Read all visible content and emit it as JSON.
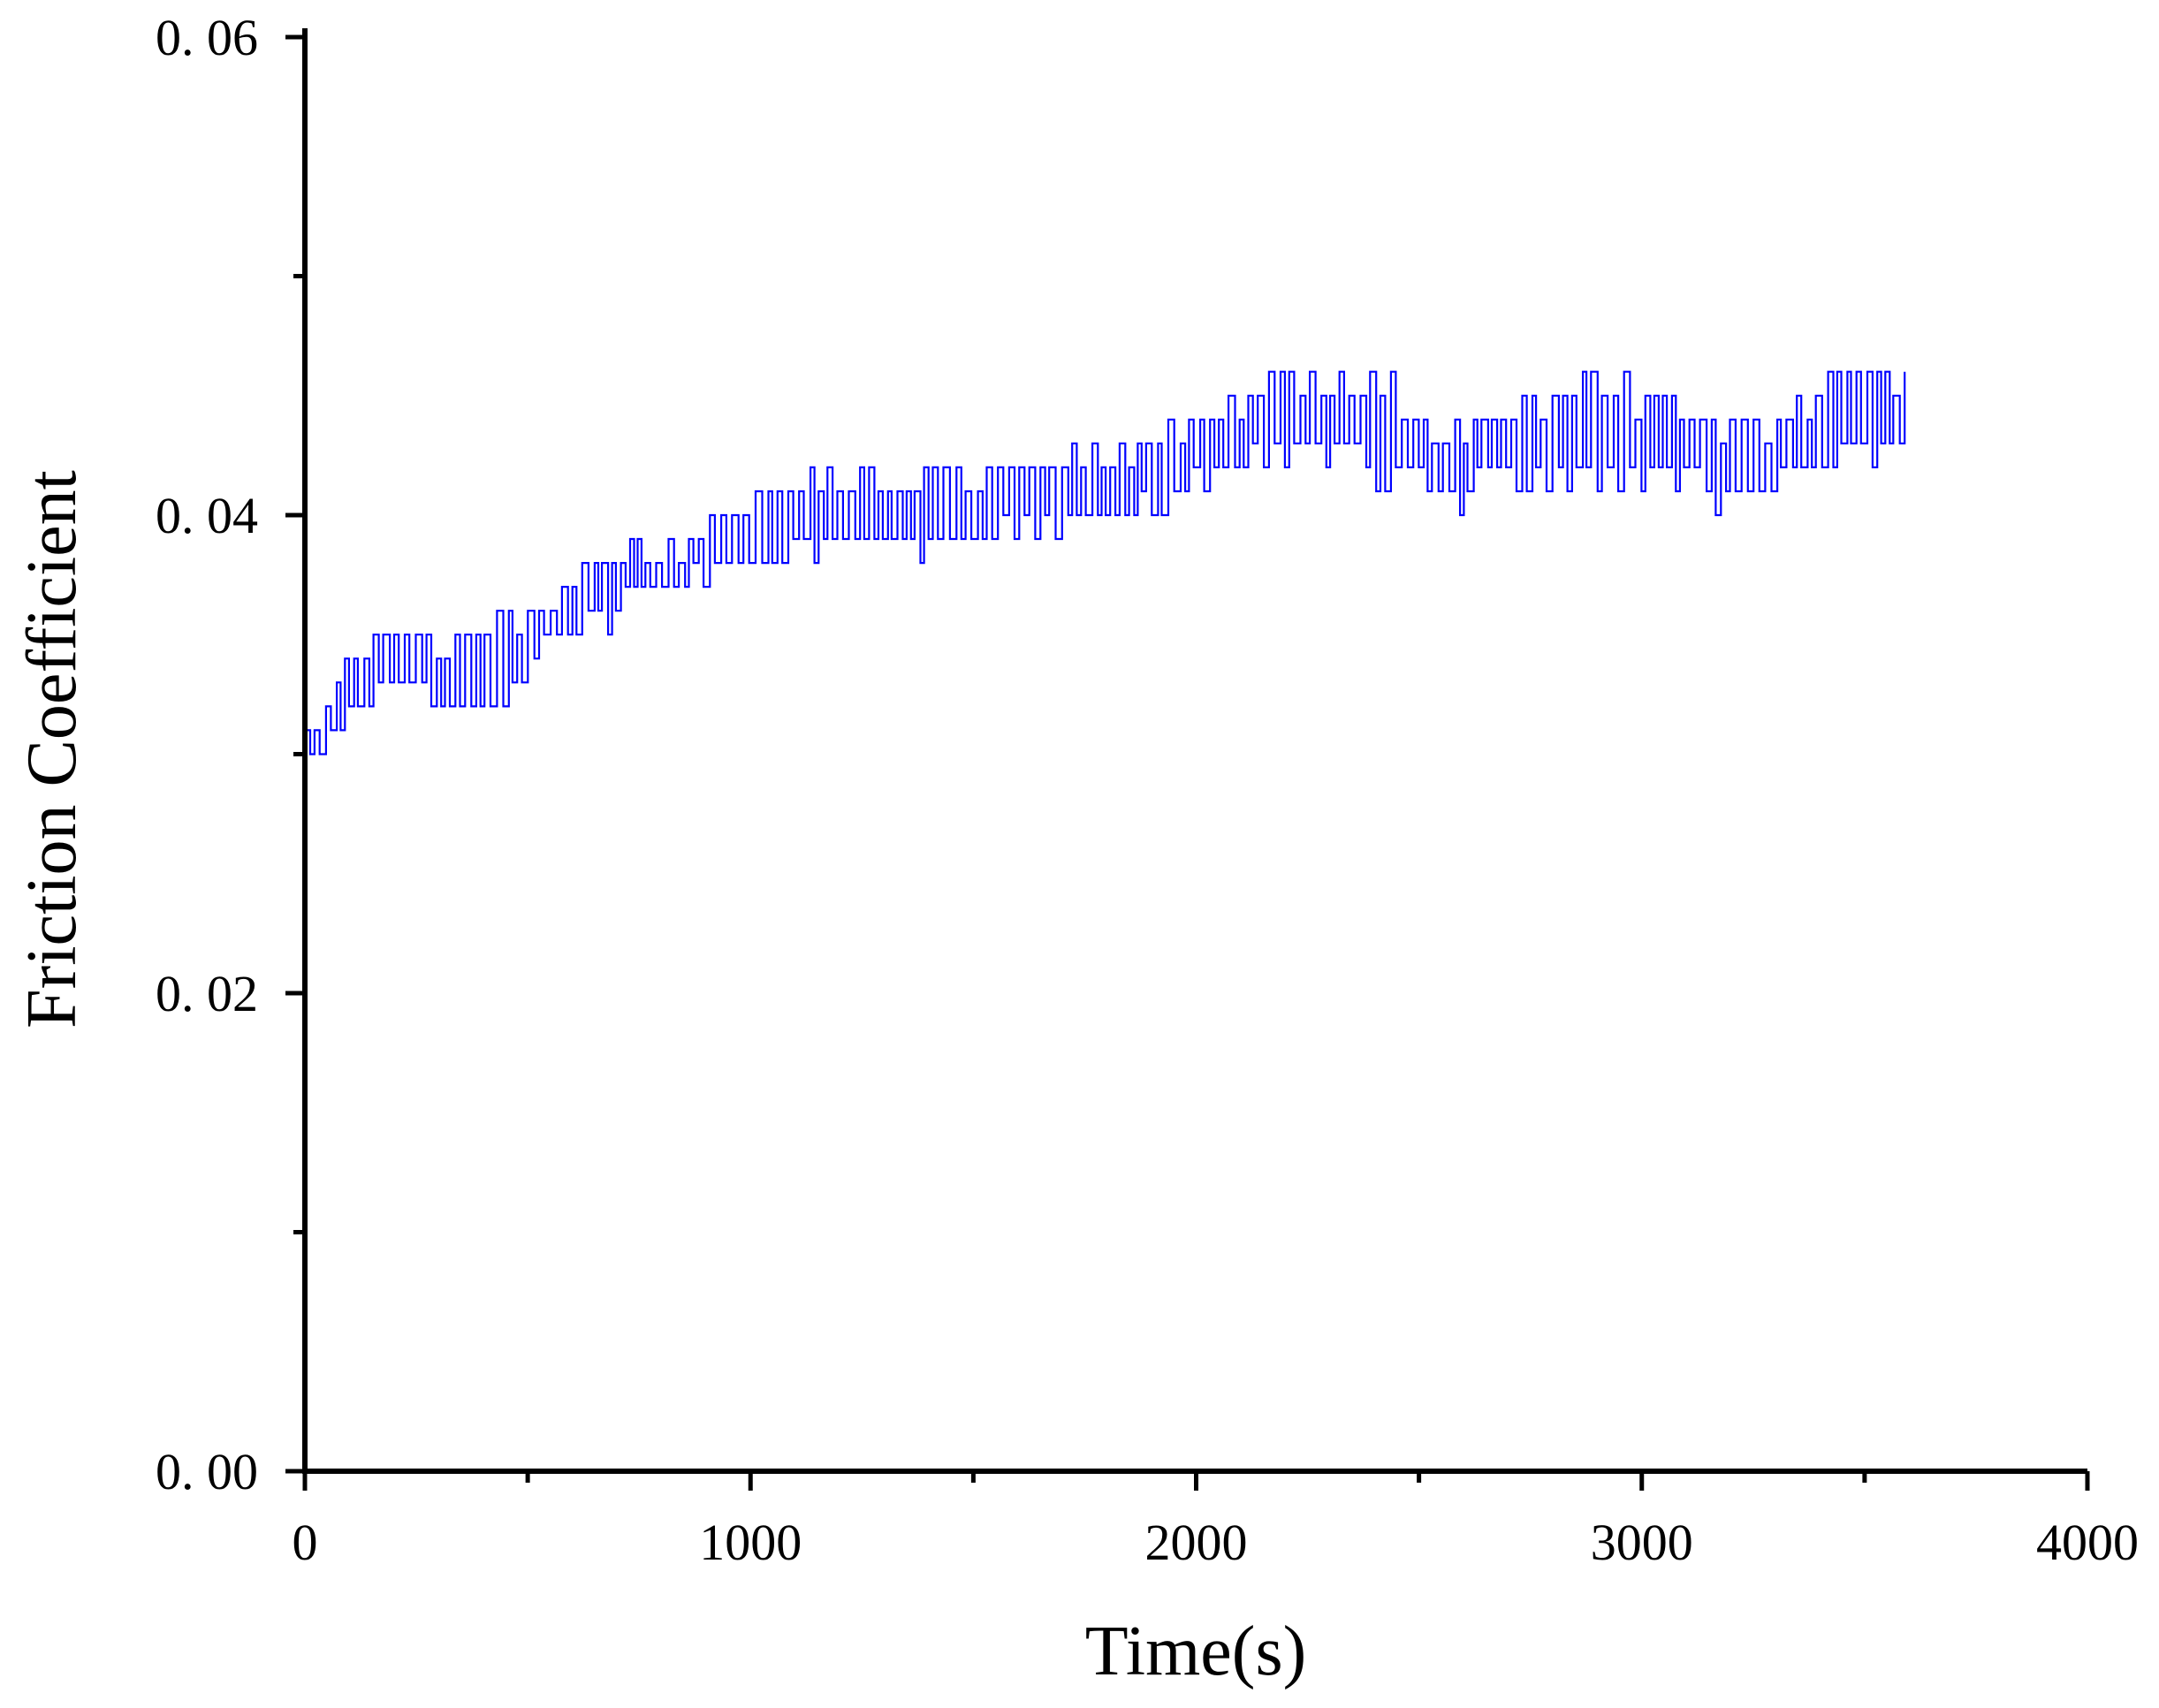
{
  "chart_data": {
    "type": "line",
    "title": "",
    "xlabel": "Time(s)",
    "ylabel": "Friction Coefficient",
    "xlim": [
      0,
      4000
    ],
    "ylim": [
      0,
      0.06
    ],
    "x_ticks": [
      0,
      1000,
      2000,
      3000,
      4000
    ],
    "x_tick_labels": [
      "0",
      "1000",
      "2000",
      "3000",
      "4000"
    ],
    "x_minor_ticks": [
      500,
      1500,
      2500,
      3500
    ],
    "y_ticks": [
      0,
      0.02,
      0.04,
      0.06
    ],
    "y_tick_labels": [
      "0. 00",
      "0. 02",
      "0. 04",
      "0. 06"
    ],
    "y_minor_ticks": [
      0.01,
      0.03,
      0.05
    ],
    "grid": false,
    "legend": "none",
    "colors": {
      "series": "#0000ff",
      "axis": "#000000"
    },
    "series": [
      {
        "x": [
          0,
          50,
          100,
          150,
          200,
          250,
          300,
          350,
          400,
          450,
          500,
          550,
          600,
          650,
          700,
          750,
          800,
          850,
          900,
          950,
          1000,
          1050,
          1100,
          1150,
          1200,
          1250,
          1300,
          1350,
          1400,
          1450,
          1500,
          1550,
          1600,
          1650,
          1700,
          1750,
          1800,
          1850,
          1900,
          1950,
          2000,
          2050,
          2100,
          2150,
          2200,
          2250,
          2300,
          2350,
          2400,
          2450,
          2500,
          2550,
          2600,
          2650,
          2700,
          2750,
          2800,
          2850,
          2900,
          2950,
          3000,
          3050,
          3100,
          3150,
          3200,
          3250,
          3300,
          3350,
          3400,
          3450,
          3500,
          3550,
          3600
        ],
        "low": [
          0.0285,
          0.03,
          0.0315,
          0.032,
          0.0325,
          0.032,
          0.0315,
          0.0315,
          0.0315,
          0.032,
          0.033,
          0.034,
          0.0345,
          0.035,
          0.0355,
          0.036,
          0.036,
          0.0365,
          0.037,
          0.0375,
          0.038,
          0.038,
          0.0385,
          0.038,
          0.038,
          0.038,
          0.038,
          0.0385,
          0.038,
          0.038,
          0.0385,
          0.039,
          0.0385,
          0.039,
          0.039,
          0.039,
          0.039,
          0.04,
          0.0395,
          0.04,
          0.041,
          0.041,
          0.041,
          0.0415,
          0.042,
          0.042,
          0.042,
          0.042,
          0.041,
          0.041,
          0.041,
          0.04,
          0.04,
          0.041,
          0.041,
          0.0405,
          0.0405,
          0.041,
          0.041,
          0.041,
          0.041,
          0.041,
          0.041,
          0.0405,
          0.04,
          0.0405,
          0.0405,
          0.041,
          0.042,
          0.042,
          0.042,
          0.042,
          0.042
        ],
        "high": [
          0.031,
          0.033,
          0.034,
          0.0355,
          0.036,
          0.036,
          0.0355,
          0.0355,
          0.0355,
          0.036,
          0.0365,
          0.037,
          0.038,
          0.0385,
          0.039,
          0.039,
          0.039,
          0.0395,
          0.04,
          0.04,
          0.041,
          0.0415,
          0.042,
          0.042,
          0.042,
          0.042,
          0.042,
          0.042,
          0.0425,
          0.042,
          0.042,
          0.0425,
          0.042,
          0.0425,
          0.043,
          0.043,
          0.043,
          0.043,
          0.044,
          0.044,
          0.045,
          0.045,
          0.046,
          0.046,
          0.047,
          0.046,
          0.046,
          0.046,
          0.046,
          0.046,
          0.045,
          0.0445,
          0.0445,
          0.045,
          0.045,
          0.045,
          0.045,
          0.046,
          0.046,
          0.046,
          0.046,
          0.046,
          0.045,
          0.0445,
          0.0445,
          0.0445,
          0.044,
          0.045,
          0.046,
          0.047,
          0.047,
          0.0465,
          0.046
        ]
      }
    ]
  }
}
